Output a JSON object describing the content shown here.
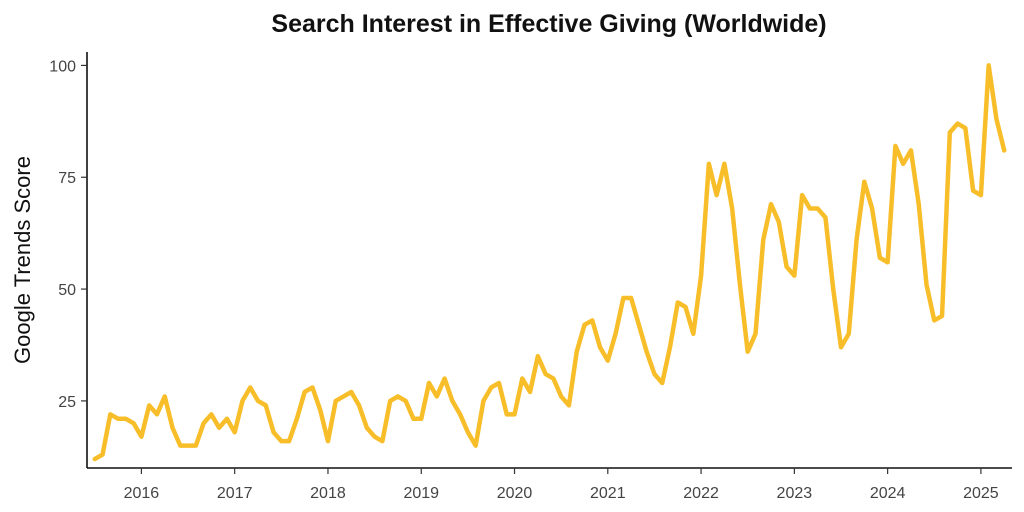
{
  "chart_data": {
    "type": "line",
    "title": "Search Interest in Effective Giving (Worldwide)",
    "xlabel": "",
    "ylabel": "Google Trends Score",
    "x_ticks": [
      "2016",
      "2017",
      "2018",
      "2019",
      "2020",
      "2021",
      "2022",
      "2023",
      "2024",
      "2025"
    ],
    "y_ticks": [
      "25",
      "50",
      "75",
      "100"
    ],
    "ylim": [
      10,
      103
    ],
    "xlim": [
      "2015-06",
      "2025-05"
    ],
    "grid": false,
    "legend": "none",
    "line_color": "#F8BE2A",
    "series": [
      {
        "x": [
          "2015-07",
          "2015-08",
          "2015-09",
          "2015-10",
          "2015-11",
          "2015-12",
          "2016-01",
          "2016-02",
          "2016-03",
          "2016-04",
          "2016-05",
          "2016-06",
          "2016-07",
          "2016-08",
          "2016-09",
          "2016-10",
          "2016-11",
          "2016-12",
          "2017-01",
          "2017-02",
          "2017-03",
          "2017-04",
          "2017-05",
          "2017-06",
          "2017-07",
          "2017-08",
          "2017-09",
          "2017-10",
          "2017-11",
          "2017-12",
          "2018-01",
          "2018-02",
          "2018-03",
          "2018-04",
          "2018-05",
          "2018-06",
          "2018-07",
          "2018-08",
          "2018-09",
          "2018-10",
          "2018-11",
          "2018-12",
          "2019-01",
          "2019-02",
          "2019-03",
          "2019-04",
          "2019-05",
          "2019-06",
          "2019-07",
          "2019-08",
          "2019-09",
          "2019-10",
          "2019-11",
          "2019-12",
          "2020-01",
          "2020-02",
          "2020-03",
          "2020-04",
          "2020-05",
          "2020-06",
          "2020-07",
          "2020-08",
          "2020-09",
          "2020-10",
          "2020-11",
          "2020-12",
          "2021-01",
          "2021-02",
          "2021-03",
          "2021-04",
          "2021-05",
          "2021-06",
          "2021-07",
          "2021-08",
          "2021-09",
          "2021-10",
          "2021-11",
          "2021-12",
          "2022-01",
          "2022-02",
          "2022-03",
          "2022-04",
          "2022-05",
          "2022-06",
          "2022-07",
          "2022-08",
          "2022-09",
          "2022-10",
          "2022-11",
          "2022-12",
          "2023-01",
          "2023-02",
          "2023-03",
          "2023-04",
          "2023-05",
          "2023-06",
          "2023-07",
          "2023-08",
          "2023-09",
          "2023-10",
          "2023-11",
          "2023-12",
          "2024-01",
          "2024-02",
          "2024-03",
          "2024-04",
          "2024-05",
          "2024-06",
          "2024-07",
          "2024-08",
          "2024-09",
          "2024-10",
          "2024-11",
          "2024-12",
          "2025-01",
          "2025-02",
          "2025-03",
          "2025-04"
        ],
        "y": [
          12,
          13,
          22,
          21,
          21,
          20,
          17,
          24,
          22,
          26,
          19,
          15,
          15,
          15,
          20,
          22,
          19,
          21,
          18,
          25,
          28,
          25,
          24,
          18,
          16,
          16,
          21,
          27,
          28,
          23,
          16,
          25,
          26,
          27,
          24,
          19,
          17,
          16,
          25,
          26,
          25,
          21,
          21,
          29,
          26,
          30,
          25,
          22,
          18,
          15,
          25,
          28,
          29,
          22,
          22,
          30,
          27,
          35,
          31,
          30,
          26,
          24,
          36,
          42,
          43,
          37,
          34,
          40,
          48,
          48,
          42,
          36,
          31,
          29,
          37,
          47,
          46,
          40,
          53,
          78,
          71,
          78,
          68,
          51,
          36,
          40,
          61,
          69,
          65,
          55,
          53,
          71,
          68,
          68,
          66,
          50,
          37,
          40,
          61,
          74,
          68,
          57,
          56,
          82,
          78,
          81,
          69,
          51,
          43,
          44,
          85,
          87,
          86,
          72,
          71,
          100,
          88,
          81
        ]
      }
    ]
  }
}
